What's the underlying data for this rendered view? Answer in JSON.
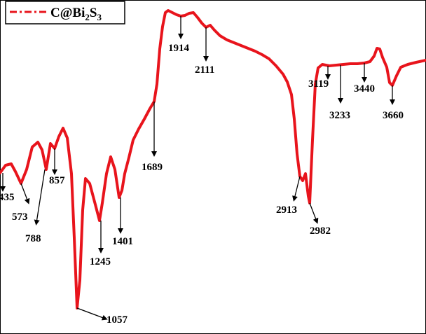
{
  "chart_data": {
    "type": "line",
    "title": "",
    "xlabel": "",
    "ylabel": "",
    "series": [
      {
        "name": "C@Bi2S3",
        "color": "#e8141c",
        "line_style": "dash-dot",
        "points": [
          [
            0,
            247
          ],
          [
            8,
            236
          ],
          [
            16,
            234
          ],
          [
            22,
            245
          ],
          [
            30,
            262
          ],
          [
            38,
            242
          ],
          [
            46,
            210
          ],
          [
            54,
            203
          ],
          [
            60,
            214
          ],
          [
            66,
            242
          ],
          [
            72,
            205
          ],
          [
            78,
            212
          ],
          [
            84,
            195
          ],
          [
            90,
            183
          ],
          [
            96,
            197
          ],
          [
            102,
            248
          ],
          [
            106,
            340
          ],
          [
            110,
            440
          ],
          [
            114,
            400
          ],
          [
            118,
            300
          ],
          [
            122,
            255
          ],
          [
            128,
            262
          ],
          [
            136,
            292
          ],
          [
            142,
            315
          ],
          [
            146,
            290
          ],
          [
            152,
            248
          ],
          [
            158,
            224
          ],
          [
            164,
            242
          ],
          [
            170,
            282
          ],
          [
            174,
            272
          ],
          [
            178,
            248
          ],
          [
            184,
            225
          ],
          [
            190,
            200
          ],
          [
            198,
            184
          ],
          [
            206,
            170
          ],
          [
            214,
            155
          ],
          [
            220,
            145
          ],
          [
            224,
            120
          ],
          [
            228,
            70
          ],
          [
            232,
            38
          ],
          [
            236,
            18
          ],
          [
            240,
            15
          ],
          [
            246,
            18
          ],
          [
            252,
            21
          ],
          [
            258,
            23
          ],
          [
            264,
            22
          ],
          [
            270,
            19
          ],
          [
            276,
            18
          ],
          [
            282,
            25
          ],
          [
            288,
            33
          ],
          [
            294,
            39
          ],
          [
            300,
            36
          ],
          [
            306,
            43
          ],
          [
            314,
            51
          ],
          [
            324,
            57
          ],
          [
            334,
            61
          ],
          [
            344,
            65
          ],
          [
            354,
            69
          ],
          [
            364,
            73
          ],
          [
            374,
            78
          ],
          [
            384,
            84
          ],
          [
            394,
            94
          ],
          [
            404,
            106
          ],
          [
            410,
            117
          ],
          [
            416,
            135
          ],
          [
            420,
            170
          ],
          [
            424,
            220
          ],
          [
            428,
            252
          ],
          [
            432,
            258
          ],
          [
            436,
            248
          ],
          [
            440,
            280
          ],
          [
            442,
            290
          ],
          [
            446,
            200
          ],
          [
            450,
            120
          ],
          [
            454,
            97
          ],
          [
            460,
            92
          ],
          [
            470,
            94
          ],
          [
            480,
            93
          ],
          [
            490,
            92
          ],
          [
            500,
            91
          ],
          [
            510,
            91
          ],
          [
            520,
            90
          ],
          [
            528,
            88
          ],
          [
            534,
            80
          ],
          [
            538,
            69
          ],
          [
            542,
            70
          ],
          [
            546,
            82
          ],
          [
            552,
            96
          ],
          [
            556,
            118
          ],
          [
            560,
            122
          ],
          [
            566,
            108
          ],
          [
            572,
            96
          ],
          [
            582,
            92
          ],
          [
            594,
            89
          ],
          [
            608,
            86
          ]
        ]
      }
    ],
    "annotations": [
      {
        "label": "435",
        "tip": [
          4,
          247
        ],
        "tail": [
          4,
          270
        ],
        "text_pos": [
          -2,
          286
        ],
        "anchor": "start"
      },
      {
        "label": "573",
        "tip": [
          30,
          262
        ],
        "tail": [
          40,
          288
        ],
        "text_pos": [
          17,
          314
        ],
        "anchor": "start"
      },
      {
        "label": "788",
        "tip": [
          64,
          242
        ],
        "tail": [
          52,
          318
        ],
        "text_pos": [
          36,
          345
        ],
        "anchor": "start"
      },
      {
        "label": "857",
        "tip": [
          78,
          212
        ],
        "tail": [
          78,
          246
        ],
        "text_pos": [
          70,
          262
        ],
        "anchor": "start"
      },
      {
        "label": "1057",
        "tip": [
          110,
          440
        ],
        "tail": [
          150,
          455
        ],
        "text_pos": [
          152,
          461
        ],
        "anchor": "start"
      },
      {
        "label": "1245",
        "tip": [
          144,
          315
        ],
        "tail": [
          144,
          358
        ],
        "text_pos": [
          128,
          378
        ],
        "anchor": "start"
      },
      {
        "label": "1401",
        "tip": [
          172,
          282
        ],
        "tail": [
          172,
          330
        ],
        "text_pos": [
          160,
          349
        ],
        "anchor": "start"
      },
      {
        "label": "1689",
        "tip": [
          220,
          145
        ],
        "tail": [
          220,
          220
        ],
        "text_pos": [
          202,
          243
        ],
        "anchor": "start"
      },
      {
        "label": "1914",
        "tip": [
          258,
          23
        ],
        "tail": [
          258,
          52
        ],
        "text_pos": [
          240,
          73
        ],
        "anchor": "start"
      },
      {
        "label": "2111",
        "tip": [
          294,
          39
        ],
        "tail": [
          294,
          84
        ],
        "text_pos": [
          278,
          104
        ],
        "anchor": "start"
      },
      {
        "label": "2913",
        "tip": [
          428,
          252
        ],
        "tail": [
          420,
          284
        ],
        "text_pos": [
          394,
          304
        ],
        "anchor": "start"
      },
      {
        "label": "2982",
        "tip": [
          442,
          290
        ],
        "tail": [
          452,
          316
        ],
        "text_pos": [
          442,
          334
        ],
        "anchor": "start"
      },
      {
        "label": "3119",
        "tip": [
          468,
          94
        ],
        "tail": [
          468,
          110
        ],
        "text_pos": [
          440,
          124
        ],
        "anchor": "start"
      },
      {
        "label": "3233",
        "tip": [
          486,
          93
        ],
        "tail": [
          486,
          144
        ],
        "text_pos": [
          470,
          169
        ],
        "anchor": "start"
      },
      {
        "label": "3440",
        "tip": [
          520,
          90
        ],
        "tail": [
          520,
          114
        ],
        "text_pos": [
          505,
          131
        ],
        "anchor": "start"
      },
      {
        "label": "3660",
        "tip": [
          560,
          122
        ],
        "tail": [
          560,
          146
        ],
        "text_pos": [
          546,
          169
        ],
        "anchor": "start"
      }
    ],
    "legend": {
      "position": "top-left",
      "label_main": "C@Bi",
      "label_sub1": "2",
      "label_mid": "S",
      "label_sub2": "3"
    },
    "grid": false
  }
}
